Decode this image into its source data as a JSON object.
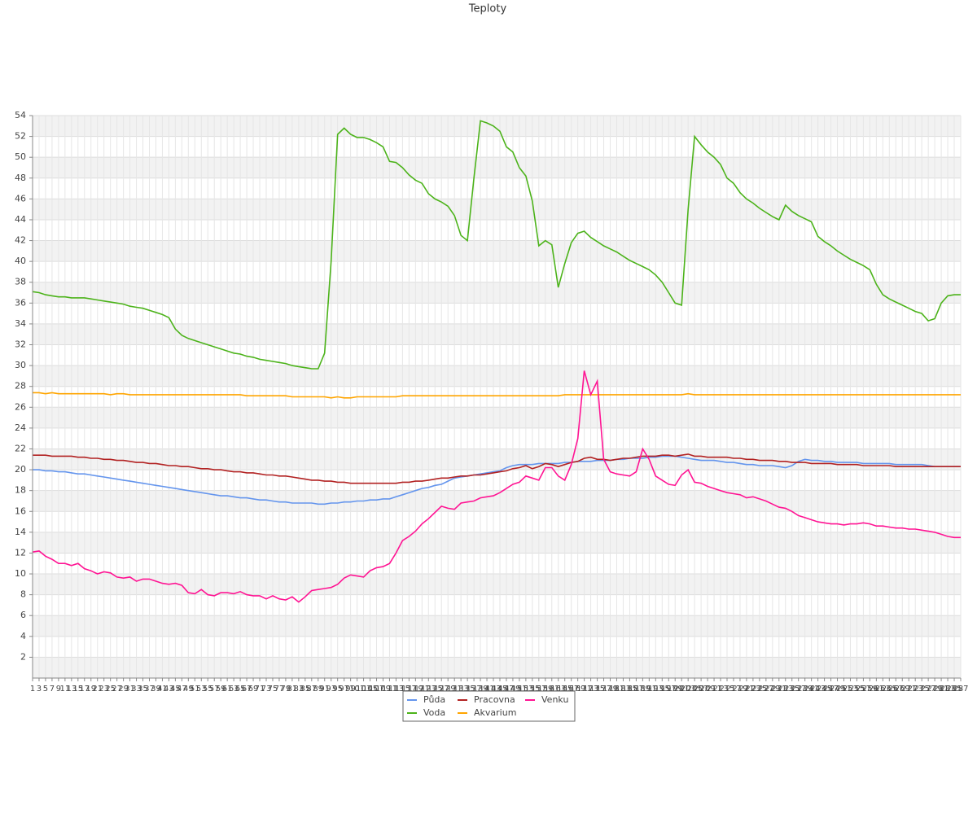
{
  "chart_data": {
    "type": "line",
    "title": "Teploty",
    "x": [
      1,
      3,
      5,
      7,
      9,
      11,
      13,
      15,
      17,
      19,
      21,
      23,
      25,
      27,
      29,
      31,
      33,
      35,
      37,
      39,
      41,
      43,
      45,
      47,
      49,
      51,
      53,
      55,
      57,
      59,
      61,
      63,
      65,
      67,
      69,
      71,
      73,
      75,
      77,
      79,
      81,
      83,
      85,
      87,
      89,
      91,
      93,
      95,
      97,
      99,
      101,
      103,
      105,
      107,
      109,
      111,
      113,
      115,
      117,
      119,
      121,
      123,
      125,
      127,
      129,
      131,
      133,
      135,
      137,
      139,
      141,
      143,
      145,
      147,
      149,
      151,
      153,
      155,
      157,
      159,
      161,
      163,
      165,
      167,
      169,
      171,
      173,
      175,
      177,
      179,
      181,
      183,
      185,
      187,
      189,
      191,
      193,
      195,
      197,
      199,
      201,
      203,
      205,
      207,
      209,
      211,
      213,
      215,
      217,
      219,
      221,
      223,
      225,
      227,
      229,
      231,
      233,
      235,
      237,
      239,
      241,
      243,
      245,
      247,
      249,
      251,
      253,
      255,
      257,
      259,
      261,
      263,
      265,
      267,
      269,
      271,
      273,
      275,
      277,
      279,
      281,
      283,
      285,
      287
    ],
    "xlim": [
      1,
      287
    ],
    "ylim": [
      0,
      54
    ],
    "yticks": [
      2,
      4,
      6,
      8,
      10,
      12,
      14,
      16,
      18,
      20,
      22,
      24,
      26,
      28,
      30,
      32,
      34,
      36,
      38,
      40,
      42,
      44,
      46,
      48,
      50,
      52,
      54
    ],
    "grid": true,
    "series": [
      {
        "name": "Půda",
        "color": "#6495ed",
        "values": [
          20.0,
          20.0,
          19.9,
          19.9,
          19.8,
          19.8,
          19.7,
          19.6,
          19.6,
          19.5,
          19.4,
          19.3,
          19.2,
          19.1,
          19.0,
          18.9,
          18.8,
          18.7,
          18.6,
          18.5,
          18.4,
          18.3,
          18.2,
          18.1,
          18.0,
          17.9,
          17.8,
          17.7,
          17.6,
          17.5,
          17.5,
          17.4,
          17.3,
          17.3,
          17.2,
          17.1,
          17.1,
          17.0,
          16.9,
          16.9,
          16.8,
          16.8,
          16.8,
          16.8,
          16.7,
          16.7,
          16.8,
          16.8,
          16.9,
          16.9,
          17.0,
          17.0,
          17.1,
          17.1,
          17.2,
          17.2,
          17.4,
          17.6,
          17.8,
          18.0,
          18.2,
          18.3,
          18.5,
          18.6,
          18.9,
          19.2,
          19.3,
          19.4,
          19.5,
          19.6,
          19.7,
          19.8,
          19.9,
          20.2,
          20.4,
          20.5,
          20.5,
          20.5,
          20.6,
          20.6,
          20.6,
          20.6,
          20.7,
          20.7,
          20.8,
          20.8,
          20.8,
          20.9,
          20.9,
          20.9,
          21.0,
          21.0,
          21.1,
          21.1,
          21.1,
          21.2,
          21.2,
          21.3,
          21.3,
          21.3,
          21.2,
          21.1,
          21.0,
          20.9,
          20.9,
          20.9,
          20.8,
          20.7,
          20.7,
          20.6,
          20.5,
          20.5,
          20.4,
          20.4,
          20.4,
          20.3,
          20.2,
          20.4,
          20.8,
          21.0,
          20.9,
          20.9,
          20.8,
          20.8,
          20.7,
          20.7,
          20.7,
          20.7,
          20.6,
          20.6,
          20.6,
          20.6,
          20.6,
          20.5,
          20.5,
          20.5,
          20.5,
          20.5,
          20.4,
          20.3,
          20.3,
          20.3,
          20.3,
          20.3
        ]
      },
      {
        "name": "Voda",
        "color": "#4cb31a",
        "values": [
          37.1,
          37.0,
          36.8,
          36.7,
          36.6,
          36.6,
          36.5,
          36.5,
          36.5,
          36.4,
          36.3,
          36.2,
          36.1,
          36.0,
          35.9,
          35.7,
          35.6,
          35.5,
          35.3,
          35.1,
          34.9,
          34.6,
          33.5,
          32.9,
          32.6,
          32.4,
          32.2,
          32.0,
          31.8,
          31.6,
          31.4,
          31.2,
          31.1,
          30.9,
          30.8,
          30.6,
          30.5,
          30.4,
          30.3,
          30.2,
          30.0,
          29.9,
          29.8,
          29.7,
          29.7,
          31.2,
          40.0,
          52.2,
          52.8,
          52.2,
          51.9,
          51.9,
          51.7,
          51.4,
          51.0,
          49.6,
          49.5,
          49.0,
          48.3,
          47.8,
          47.5,
          46.5,
          46.0,
          45.7,
          45.3,
          44.4,
          42.5,
          42.0,
          48.0,
          53.5,
          53.3,
          53.0,
          52.5,
          51.0,
          50.5,
          49.0,
          48.2,
          45.8,
          41.5,
          42.0,
          41.6,
          37.5,
          39.8,
          41.8,
          42.7,
          42.9,
          42.3,
          41.9,
          41.5,
          41.2,
          40.9,
          40.5,
          40.1,
          39.8,
          39.5,
          39.2,
          38.7,
          38.0,
          37.0,
          36.0,
          35.8,
          45.0,
          52.0,
          51.2,
          50.5,
          50.0,
          49.3,
          48.0,
          47.5,
          46.6,
          46.0,
          45.6,
          45.1,
          44.7,
          44.3,
          44.0,
          45.4,
          44.8,
          44.4,
          44.1,
          43.8,
          42.4,
          41.9,
          41.5,
          41.0,
          40.6,
          40.2,
          39.9,
          39.6,
          39.2,
          37.8,
          36.8,
          36.4,
          36.1,
          35.8,
          35.5,
          35.2,
          35.0,
          34.3,
          34.5,
          36.0,
          36.7,
          36.8,
          36.8
        ]
      },
      {
        "name": "Pracovna",
        "color": "#b22222",
        "values": [
          21.4,
          21.4,
          21.4,
          21.3,
          21.3,
          21.3,
          21.3,
          21.2,
          21.2,
          21.1,
          21.1,
          21.0,
          21.0,
          20.9,
          20.9,
          20.8,
          20.7,
          20.7,
          20.6,
          20.6,
          20.5,
          20.4,
          20.4,
          20.3,
          20.3,
          20.2,
          20.1,
          20.1,
          20.0,
          20.0,
          19.9,
          19.8,
          19.8,
          19.7,
          19.7,
          19.6,
          19.5,
          19.5,
          19.4,
          19.4,
          19.3,
          19.2,
          19.1,
          19.0,
          19.0,
          18.9,
          18.9,
          18.8,
          18.8,
          18.7,
          18.7,
          18.7,
          18.7,
          18.7,
          18.7,
          18.7,
          18.7,
          18.8,
          18.8,
          18.9,
          18.9,
          19.0,
          19.1,
          19.2,
          19.2,
          19.3,
          19.4,
          19.4,
          19.5,
          19.5,
          19.6,
          19.7,
          19.8,
          19.9,
          20.1,
          20.2,
          20.4,
          20.1,
          20.3,
          20.6,
          20.5,
          20.3,
          20.5,
          20.7,
          20.8,
          21.1,
          21.2,
          21.0,
          21.0,
          20.9,
          21.0,
          21.1,
          21.1,
          21.2,
          21.3,
          21.3,
          21.3,
          21.4,
          21.4,
          21.3,
          21.4,
          21.5,
          21.3,
          21.3,
          21.2,
          21.2,
          21.2,
          21.2,
          21.1,
          21.1,
          21.0,
          21.0,
          20.9,
          20.9,
          20.9,
          20.8,
          20.8,
          20.7,
          20.7,
          20.7,
          20.6,
          20.6,
          20.6,
          20.6,
          20.5,
          20.5,
          20.5,
          20.5,
          20.4,
          20.4,
          20.4,
          20.4,
          20.4,
          20.3,
          20.3,
          20.3,
          20.3,
          20.3,
          20.3,
          20.3,
          20.3,
          20.3,
          20.3,
          20.3
        ]
      },
      {
        "name": "Akvarium",
        "color": "#ffa500",
        "values": [
          27.4,
          27.4,
          27.3,
          27.4,
          27.3,
          27.3,
          27.3,
          27.3,
          27.3,
          27.3,
          27.3,
          27.3,
          27.2,
          27.3,
          27.3,
          27.2,
          27.2,
          27.2,
          27.2,
          27.2,
          27.2,
          27.2,
          27.2,
          27.2,
          27.2,
          27.2,
          27.2,
          27.2,
          27.2,
          27.2,
          27.2,
          27.2,
          27.2,
          27.1,
          27.1,
          27.1,
          27.1,
          27.1,
          27.1,
          27.1,
          27.0,
          27.0,
          27.0,
          27.0,
          27.0,
          27.0,
          26.9,
          27.0,
          26.9,
          26.9,
          27.0,
          27.0,
          27.0,
          27.0,
          27.0,
          27.0,
          27.0,
          27.1,
          27.1,
          27.1,
          27.1,
          27.1,
          27.1,
          27.1,
          27.1,
          27.1,
          27.1,
          27.1,
          27.1,
          27.1,
          27.1,
          27.1,
          27.1,
          27.1,
          27.1,
          27.1,
          27.1,
          27.1,
          27.1,
          27.1,
          27.1,
          27.1,
          27.2,
          27.2,
          27.2,
          27.2,
          27.2,
          27.2,
          27.2,
          27.2,
          27.2,
          27.2,
          27.2,
          27.2,
          27.2,
          27.2,
          27.2,
          27.2,
          27.2,
          27.2,
          27.2,
          27.3,
          27.2,
          27.2,
          27.2,
          27.2,
          27.2,
          27.2,
          27.2,
          27.2,
          27.2,
          27.2,
          27.2,
          27.2,
          27.2,
          27.2,
          27.2,
          27.2,
          27.2,
          27.2,
          27.2,
          27.2,
          27.2,
          27.2,
          27.2,
          27.2,
          27.2,
          27.2,
          27.2,
          27.2,
          27.2,
          27.2,
          27.2,
          27.2,
          27.2,
          27.2,
          27.2,
          27.2,
          27.2,
          27.2,
          27.2,
          27.2,
          27.2,
          27.2
        ]
      },
      {
        "name": "Venku",
        "color": "#ff1493",
        "values": [
          12.1,
          12.2,
          11.7,
          11.4,
          11.0,
          11.0,
          10.8,
          11.0,
          10.5,
          10.3,
          10.0,
          10.2,
          10.1,
          9.7,
          9.6,
          9.7,
          9.3,
          9.5,
          9.5,
          9.3,
          9.1,
          9.0,
          9.1,
          8.9,
          8.2,
          8.1,
          8.5,
          8.0,
          7.9,
          8.2,
          8.2,
          8.1,
          8.3,
          8.0,
          7.9,
          7.9,
          7.6,
          7.9,
          7.6,
          7.5,
          7.8,
          7.3,
          7.8,
          8.4,
          8.5,
          8.6,
          8.7,
          9.0,
          9.6,
          9.9,
          9.8,
          9.7,
          10.3,
          10.6,
          10.7,
          11.0,
          12.0,
          13.2,
          13.6,
          14.1,
          14.8,
          15.3,
          15.9,
          16.5,
          16.3,
          16.2,
          16.8,
          16.9,
          17.0,
          17.3,
          17.4,
          17.5,
          17.8,
          18.2,
          18.6,
          18.8,
          19.4,
          19.2,
          19.0,
          20.2,
          20.2,
          19.4,
          19.0,
          20.5,
          23.0,
          29.5,
          27.2,
          28.5,
          21.0,
          19.8,
          19.6,
          19.5,
          19.4,
          19.8,
          22.0,
          21.0,
          19.4,
          19.0,
          18.6,
          18.5,
          19.5,
          20.0,
          18.8,
          18.7,
          18.4,
          18.2,
          18.0,
          17.8,
          17.7,
          17.6,
          17.3,
          17.4,
          17.2,
          17.0,
          16.7,
          16.4,
          16.3,
          16.0,
          15.6,
          15.4,
          15.2,
          15.0,
          14.9,
          14.8,
          14.8,
          14.7,
          14.8,
          14.8,
          14.9,
          14.8,
          14.6,
          14.6,
          14.5,
          14.4,
          14.4,
          14.3,
          14.3,
          14.2,
          14.1,
          14.0,
          13.8,
          13.6,
          13.5,
          13.5
        ]
      }
    ]
  }
}
